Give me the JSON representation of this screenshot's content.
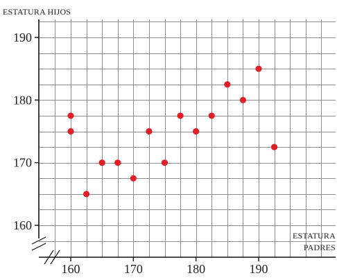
{
  "chart_data": {
    "type": "scatter",
    "ylabel": "ESTATURA HIJOS",
    "xlabel_lines": [
      "ESTATURA",
      "PADRES"
    ],
    "x_ticks": [
      "160",
      "170",
      "180",
      "190"
    ],
    "y_ticks": [
      "160",
      "170",
      "180",
      "190"
    ],
    "xlim": [
      155,
      201
    ],
    "ylim": [
      155,
      194
    ],
    "grid": true,
    "grid_step": 2.5,
    "axis_break": true,
    "point_color": "#e41e26",
    "points": [
      {
        "x": 160,
        "y": 177.5
      },
      {
        "x": 160,
        "y": 175
      },
      {
        "x": 162.5,
        "y": 165
      },
      {
        "x": 165,
        "y": 170
      },
      {
        "x": 167.5,
        "y": 170
      },
      {
        "x": 170,
        "y": 167.5
      },
      {
        "x": 172.5,
        "y": 175
      },
      {
        "x": 175,
        "y": 170
      },
      {
        "x": 177.5,
        "y": 177.5
      },
      {
        "x": 180,
        "y": 175
      },
      {
        "x": 182.5,
        "y": 177.5
      },
      {
        "x": 185,
        "y": 182.5
      },
      {
        "x": 187.5,
        "y": 180
      },
      {
        "x": 190,
        "y": 185
      },
      {
        "x": 192.5,
        "y": 172.5
      }
    ]
  }
}
